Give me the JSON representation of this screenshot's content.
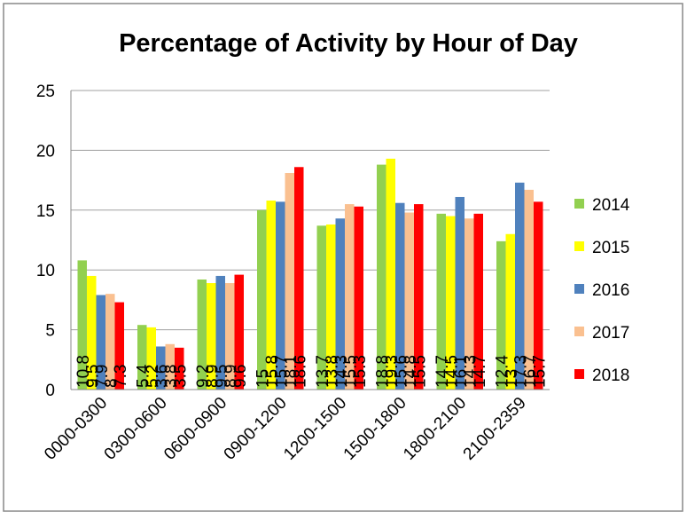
{
  "chart_data": {
    "type": "bar",
    "title": "Percentage of Activity by Hour of Day",
    "categories": [
      "0000-0300",
      "0300-0600",
      "0600-0900",
      "0900-1200",
      "1200-1500",
      "1500-1800",
      "1800-2100",
      "2100-2359"
    ],
    "series": [
      {
        "name": "2014",
        "color": "#92d050",
        "values": [
          10.8,
          5.4,
          9.2,
          15,
          13.7,
          18.8,
          14.7,
          12.4
        ]
      },
      {
        "name": "2015",
        "color": "#ffff00",
        "values": [
          9.5,
          5.2,
          8.9,
          15.8,
          13.8,
          19.3,
          14.5,
          13
        ]
      },
      {
        "name": "2016",
        "color": "#4f81bd",
        "values": [
          7.9,
          3.6,
          9.5,
          15.7,
          14.3,
          15.6,
          16.1,
          17.3
        ]
      },
      {
        "name": "2017",
        "color": "#fac090",
        "values": [
          8,
          3.8,
          8.9,
          18.1,
          15.5,
          14.8,
          14.3,
          16.7
        ]
      },
      {
        "name": "2018",
        "color": "#ff0000",
        "values": [
          7.3,
          3.5,
          9.6,
          18.6,
          15.3,
          15.5,
          14.7,
          15.7
        ]
      }
    ],
    "ylim": [
      0,
      25
    ],
    "yticks": [
      0,
      5,
      10,
      15,
      20,
      25
    ],
    "grid": true,
    "legend": "right"
  }
}
